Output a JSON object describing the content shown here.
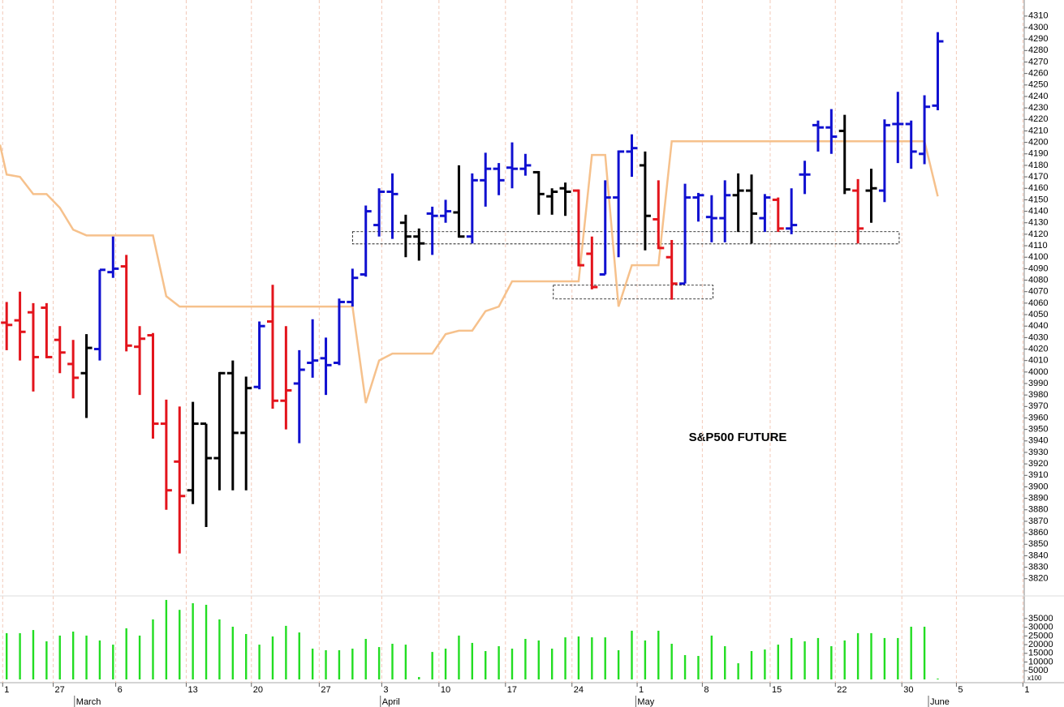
{
  "chart_data": {
    "type": "ohlc",
    "annotation": "S&P500 FUTURE",
    "xlim": [
      -0.5,
      76.5
    ],
    "ylim": [
      3805,
      4324
    ],
    "grid": true,
    "palette": {
      "r": "#e3141c",
      "k": "#000000",
      "b": "#1010d0"
    },
    "color_codes": "rrrrrrkbbrrrrrkkkkkbrrbbbbbbbbkkbbkbbbbbkkkrrbbbkrrbbbbkkbrbbbbkrkbbbbb",
    "open": [
      4043,
      4045,
      4052,
      4056,
      4028,
      4007,
      3999,
      4020,
      4087,
      4092,
      4022,
      4032,
      3955,
      3922,
      3897,
      3955,
      3925,
      3999,
      3947,
      3987,
      4044,
      3975,
      3990,
      4008,
      4012,
      4008,
      4061,
      4085,
      4128,
      4157,
      4130,
      4118,
      4138,
      4136,
      4139,
      4118,
      4167,
      4177,
      4178,
      4177,
      4174,
      4153,
      4160,
      4158,
      4103,
      4085,
      4152,
      4192,
      4180,
      4133,
      4100,
      4077,
      4152,
      4135,
      4134,
      4154,
      4158,
      4134,
      4150,
      4125,
      4172,
      4215,
      4213,
      4210,
      4158,
      4158,
      4158,
      4216,
      4216,
      4190,
      4232
    ],
    "high": [
      4061,
      4070,
      4060,
      4060,
      4040,
      4028,
      4033,
      4089,
      4118,
      4102,
      4040,
      4034,
      3976,
      3970,
      3974,
      3955,
      4000,
      4010,
      3996,
      4044,
      4076,
      4040,
      4019,
      4046,
      4030,
      4064,
      4090,
      4145,
      4160,
      4173,
      4137,
      4125,
      4144,
      4150,
      4180,
      4173,
      4191,
      4182,
      4200,
      4190,
      4175,
      4160,
      4165,
      4159,
      4118,
      4167,
      4193,
      4207,
      4192,
      4167,
      4115,
      4164,
      4156,
      4154,
      4167,
      4173,
      4172,
      4155,
      4152,
      4160,
      4184,
      4219,
      4229,
      4224,
      4168,
      4177,
      4220,
      4244,
      4219,
      4241,
      4296
    ],
    "low": [
      4019,
      4010,
      3983,
      4012,
      3999,
      3977,
      3960,
      4010,
      4082,
      4018,
      3980,
      3942,
      3880,
      3842,
      3885,
      3865,
      3897,
      3897,
      3897,
      3985,
      3968,
      3950,
      3938,
      3995,
      3980,
      4006,
      4057,
      4083,
      4118,
      4116,
      4100,
      4097,
      4102,
      4130,
      4117,
      4112,
      4144,
      4154,
      4160,
      4171,
      4137,
      4137,
      4136,
      4092,
      4072,
      4085,
      4100,
      4170,
      4106,
      4107,
      4063,
      4077,
      4131,
      4113,
      4113,
      4122,
      4112,
      4122,
      4122,
      4120,
      4155,
      4192,
      4190,
      4155,
      4112,
      4130,
      4148,
      4182,
      4177,
      4181,
      4228
    ],
    "close": [
      4041,
      4035,
      4013,
      4013,
      4017,
      3995,
      4021,
      4089,
      4090,
      4023,
      4029,
      3955,
      3897,
      3892,
      3955,
      3925,
      3999,
      3947,
      3986,
      4040,
      3975,
      3984,
      4002,
      4010,
      4006,
      4061,
      4082,
      4140,
      4157,
      4155,
      4118,
      4112,
      4136,
      4140,
      4118,
      4167,
      4177,
      4167,
      4177,
      4180,
      4155,
      4157,
      4157,
      4093,
      4074,
      4152,
      4192,
      4195,
      4136,
      4108,
      4077,
      4152,
      4154,
      4134,
      4154,
      4158,
      4138,
      4152,
      4125,
      4128,
      4172,
      4213,
      4205,
      4159,
      4125,
      4160,
      4215,
      4216,
      4192,
      4231,
      4288
    ],
    "yticks": [
      3820,
      3830,
      3840,
      3850,
      3860,
      3870,
      3880,
      3890,
      3900,
      3910,
      3920,
      3930,
      3940,
      3950,
      3960,
      3970,
      3980,
      3990,
      4000,
      4010,
      4020,
      4030,
      4040,
      4050,
      4060,
      4070,
      4080,
      4090,
      4100,
      4110,
      4120,
      4130,
      4140,
      4150,
      4160,
      4170,
      4180,
      4190,
      4200,
      4210,
      4220,
      4230,
      4240,
      4250,
      4260,
      4270,
      4280,
      4290,
      4300,
      4310
    ],
    "line": {
      "color": "#f6c18c",
      "x": [
        -0.5,
        0,
        1,
        2,
        3,
        4,
        5,
        6,
        11,
        12,
        13,
        26,
        27,
        28,
        29,
        32,
        33,
        34,
        35,
        36,
        37,
        38,
        43,
        44,
        45,
        46,
        47,
        49,
        50,
        69,
        70
      ],
      "values": [
        4198,
        4172,
        4170,
        4155,
        4155,
        4143,
        4124,
        4119,
        4119,
        4066,
        4057,
        4057,
        3973,
        4010,
        4016,
        4016,
        4033,
        4036,
        4036,
        4053,
        4057,
        4079,
        4079,
        4189,
        4189,
        4057,
        4093,
        4093,
        4201,
        4201,
        4153
      ]
    },
    "zones": [
      {
        "x": [
          26,
          67.1
        ],
        "y": [
          4111.6,
          4122.2
        ]
      },
      {
        "x": [
          41.1,
          53.1
        ],
        "y": [
          4063.6,
          4075.6
        ]
      }
    ],
    "volume": {
      "color": "#22dd22",
      "ylim": [
        0,
        48000
      ],
      "unit_label": "x100",
      "yticks": [
        5000,
        10000,
        15000,
        20000,
        25000,
        30000,
        35000
      ],
      "values": [
        26600,
        26600,
        28400,
        21900,
        25200,
        27500,
        25200,
        22400,
        20000,
        29400,
        25200,
        34500,
        45700,
        40000,
        43800,
        42900,
        34500,
        30300,
        26100,
        20000,
        24700,
        30800,
        27000,
        17700,
        16800,
        16800,
        17700,
        23300,
        18600,
        20500,
        20000,
        1400,
        15800,
        17700,
        25200,
        21000,
        16300,
        19100,
        17700,
        23300,
        22400,
        17700,
        24200,
        24700,
        24200,
        24200,
        16800,
        28000,
        22400,
        28000,
        20500,
        14000,
        13500,
        25200,
        19100,
        9300,
        16300,
        17200,
        20000,
        23800,
        21900,
        23800,
        19100,
        22400,
        26600,
        26600,
        23800,
        23800,
        30300,
        30300,
        500
      ]
    },
    "xticks": [
      {
        "value": -0.3,
        "label": "1"
      },
      {
        "value": 3.5,
        "label": "27"
      },
      {
        "value": 8.2,
        "label": "6"
      },
      {
        "value": 13.5,
        "label": "13"
      },
      {
        "value": 18.4,
        "label": "20"
      },
      {
        "value": 23.5,
        "label": "27"
      },
      {
        "value": 28.2,
        "label": "3"
      },
      {
        "value": 32.5,
        "label": "10"
      },
      {
        "value": 37.5,
        "label": "17"
      },
      {
        "value": 42.5,
        "label": "24"
      },
      {
        "value": 47.4,
        "label": "1"
      },
      {
        "value": 52.3,
        "label": "8"
      },
      {
        "value": 57.4,
        "label": "15"
      },
      {
        "value": 62.3,
        "label": "22"
      },
      {
        "value": 67.3,
        "label": "30"
      },
      {
        "value": 71.4,
        "label": "5"
      },
      {
        "value": 76.4,
        "label": "1"
      }
    ],
    "months": [
      {
        "value": 5.1,
        "label": "March"
      },
      {
        "value": 28.1,
        "label": "April"
      },
      {
        "value": 47.3,
        "label": "May"
      },
      {
        "value": 69.3,
        "label": "June"
      }
    ]
  }
}
